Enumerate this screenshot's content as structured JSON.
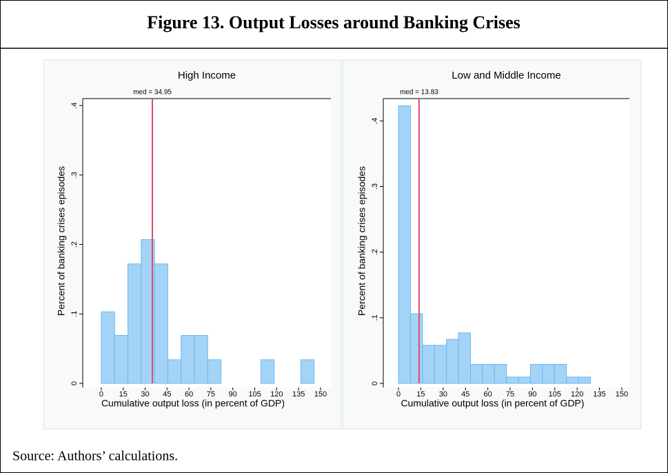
{
  "title": "Figure 13. Output Losses around Banking Crises",
  "source": "Source: Authors’ calculations.",
  "chart_data": [
    {
      "type": "histogram",
      "title": "High Income",
      "xlabel": "Cumulative output loss (in percent of GDP)",
      "ylabel": "Percent of banking crises episodes",
      "bins": [
        0,
        9.1,
        18.2,
        27.3,
        36.4,
        45.5,
        54.6,
        63.7,
        72.8,
        81.9,
        91,
        100.1,
        109.2,
        118.3,
        127.4,
        136.5,
        145.6
      ],
      "values": [
        0.103,
        0.069,
        0.172,
        0.207,
        0.172,
        0.034,
        0.069,
        0.069,
        0.034,
        0,
        0,
        0,
        0.034,
        0,
        0,
        0.034
      ],
      "color": "#a3d4f7",
      "median": 34.95,
      "annotation": "med = 34.95",
      "median_color": "#e04a6c",
      "xlim": [
        -12.7,
        157.1
      ],
      "xticks": [
        0,
        15,
        30,
        45,
        60,
        75,
        90,
        105,
        120,
        135,
        150
      ],
      "ylim": [
        0,
        0.41
      ],
      "yticks": [
        0,
        {
          "value": 0.1,
          "label": ".1"
        },
        {
          "value": 0.2,
          "label": ".2"
        },
        {
          "value": 0.3,
          "label": ".3"
        },
        {
          "value": 0.4,
          "label": ".4"
        }
      ]
    },
    {
      "type": "histogram",
      "title": "Low and Middle Income",
      "xlabel": "Cumulative output loss (in percent of GDP)",
      "ylabel": "Percent of banking crises episodes",
      "bins": [
        0,
        8.06,
        16.12,
        24.18,
        32.24,
        40.3,
        48.36,
        56.42,
        64.48,
        72.54,
        80.6,
        88.66,
        96.72,
        104.78,
        112.84,
        120.9,
        128.96
      ],
      "values": [
        0.423,
        0.106,
        0.058,
        0.058,
        0.067,
        0.077,
        0.029,
        0.029,
        0.029,
        0.0096,
        0.0096,
        0.029,
        0.029,
        0.029,
        0.0096,
        0.0096
      ],
      "color": "#a3d4f7",
      "median": 13.83,
      "annotation": "med = 13.83",
      "median_color": "#e04a6c",
      "xlim": [
        -10.2,
        155.1
      ],
      "xticks": [
        0,
        15,
        30,
        45,
        60,
        75,
        90,
        105,
        120,
        135,
        150
      ],
      "ylim": [
        0,
        0.434
      ],
      "yticks": [
        0,
        {
          "value": 0.1,
          "label": ".1"
        },
        {
          "value": 0.2,
          "label": ".2"
        },
        {
          "value": 0.3,
          "label": ".3"
        },
        {
          "value": 0.4,
          "label": ".4"
        }
      ]
    }
  ]
}
